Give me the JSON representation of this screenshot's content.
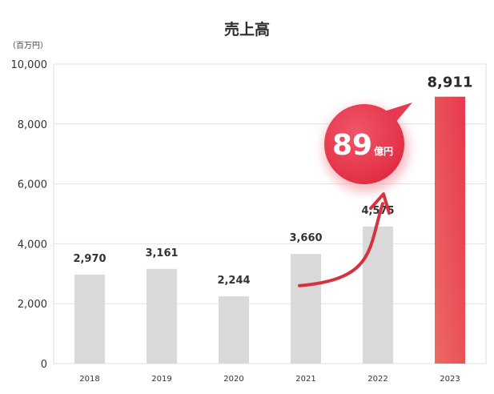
{
  "chart_data": {
    "type": "bar",
    "title": "売上高",
    "unit_label": "（百万円）",
    "categories": [
      "2018",
      "2019",
      "2020",
      "2021",
      "2022",
      "2023"
    ],
    "values": [
      2970,
      3161,
      2244,
      3660,
      4575,
      8911
    ],
    "value_labels": [
      "2,970",
      "3,161",
      "2,244",
      "3,660",
      "4,575",
      "8,911"
    ],
    "ylim": [
      0,
      10000
    ],
    "yticks": [
      0,
      2000,
      4000,
      6000,
      8000,
      10000
    ],
    "ytick_labels": [
      "0",
      "2,000",
      "4,000",
      "6,000",
      "8,000",
      "10,000"
    ],
    "grid": true,
    "colors": {
      "bar": "#d9d9d9",
      "highlight_top": "#e8384f",
      "highlight_bottom": "#ec6a63",
      "arrow": "#d9303f"
    },
    "annotation": {
      "number": "89",
      "unit": "億円"
    }
  }
}
